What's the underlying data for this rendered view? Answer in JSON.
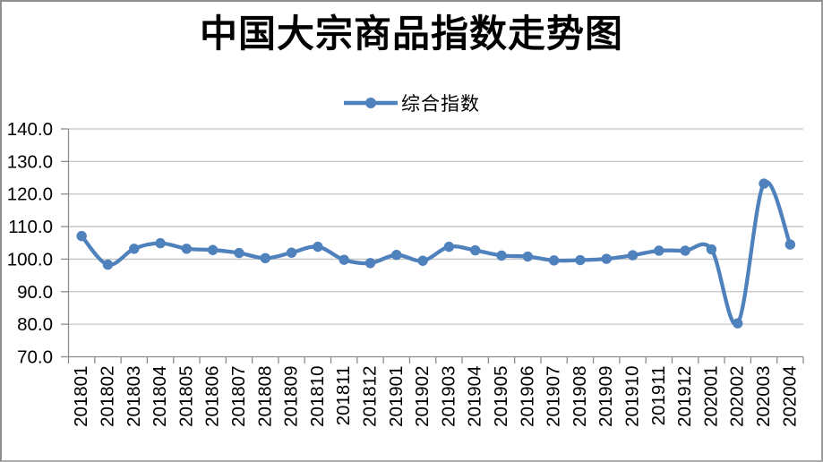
{
  "chart_data": {
    "type": "line",
    "title": "中国大宗商品指数走势图",
    "legend": {
      "label": "综合指数",
      "position": "top-center"
    },
    "categories": [
      "201801",
      "201802",
      "201803",
      "201804",
      "201805",
      "201806",
      "201807",
      "201808",
      "201809",
      "201810",
      "201811",
      "201812",
      "201901",
      "201902",
      "201903",
      "201904",
      "201905",
      "201906",
      "201907",
      "201908",
      "201909",
      "201910",
      "201911",
      "201912",
      "202001",
      "202002",
      "202003",
      "202004"
    ],
    "series": [
      {
        "name": "综合指数",
        "values": [
          107.1,
          98.3,
          103.2,
          104.9,
          103.2,
          102.8,
          101.9,
          100.3,
          102.0,
          103.8,
          99.8,
          98.8,
          101.3,
          99.5,
          103.8,
          102.7,
          101.1,
          100.8,
          99.6,
          99.7,
          100.1,
          101.2,
          102.6,
          102.6,
          103.0,
          80.3,
          123.2,
          104.5
        ]
      }
    ],
    "ylim": [
      70,
      140
    ],
    "y_tick_step": 10,
    "y_tick_labels": [
      "140.0",
      "130.0",
      "120.0",
      "110.0",
      "100.0",
      "90.0",
      "80.0",
      "70.0"
    ],
    "x_tick_label_rotation": -90,
    "grid": true,
    "smoothed": true,
    "marker": "circle",
    "line_color": "#4F81BD",
    "grid_color": "#C3C3C3",
    "axis_color": "#8C8C8C",
    "text_color": "#000000",
    "background": "#FFFFFF"
  }
}
